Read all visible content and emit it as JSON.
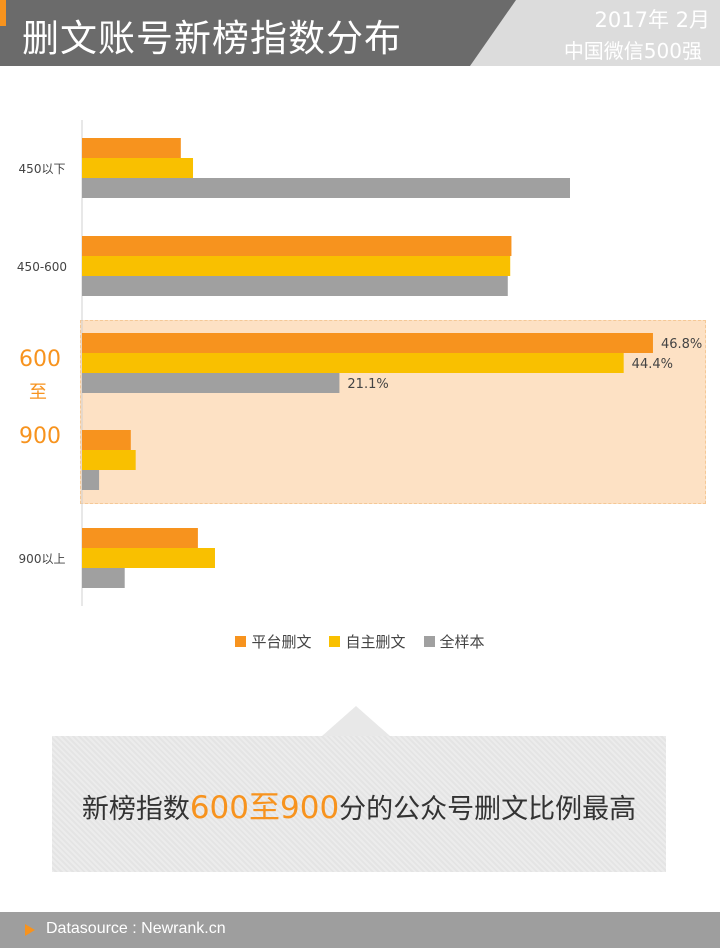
{
  "header": {
    "title": "删文账号新榜指数分布",
    "date": "2017年 2月",
    "subtitle": "中国微信500强"
  },
  "chart_data": {
    "type": "bar",
    "orientation": "horizontal",
    "categories": [
      "450以下",
      "450-600",
      "600至900",
      "900以上"
    ],
    "highlighted_category": "600至900",
    "series": [
      {
        "name": "平台删文",
        "color": "#f7931e",
        "values": [
          8.1,
          35.2,
          46.8,
          9.5
        ]
      },
      {
        "name": "自主删文",
        "color": "#f9c000",
        "values": [
          9.1,
          35.1,
          44.4,
          10.9
        ]
      },
      {
        "name": "全样本",
        "color": "#a0a0a0",
        "values": [
          40.0,
          34.9,
          21.1,
          3.5
        ]
      }
    ],
    "data_labels": {
      "category": "600至900",
      "texts": [
        "46.8%",
        "44.4%",
        "21.1%"
      ]
    },
    "xlim": [
      0,
      50
    ],
    "grid": false,
    "legend_position": "bottom"
  },
  "callout": {
    "prefix": "新榜指数",
    "highlight": "600至900",
    "suffix": "分的公众号删文比例最高"
  },
  "footer": {
    "source": "Datasource : Newrank.cn"
  }
}
